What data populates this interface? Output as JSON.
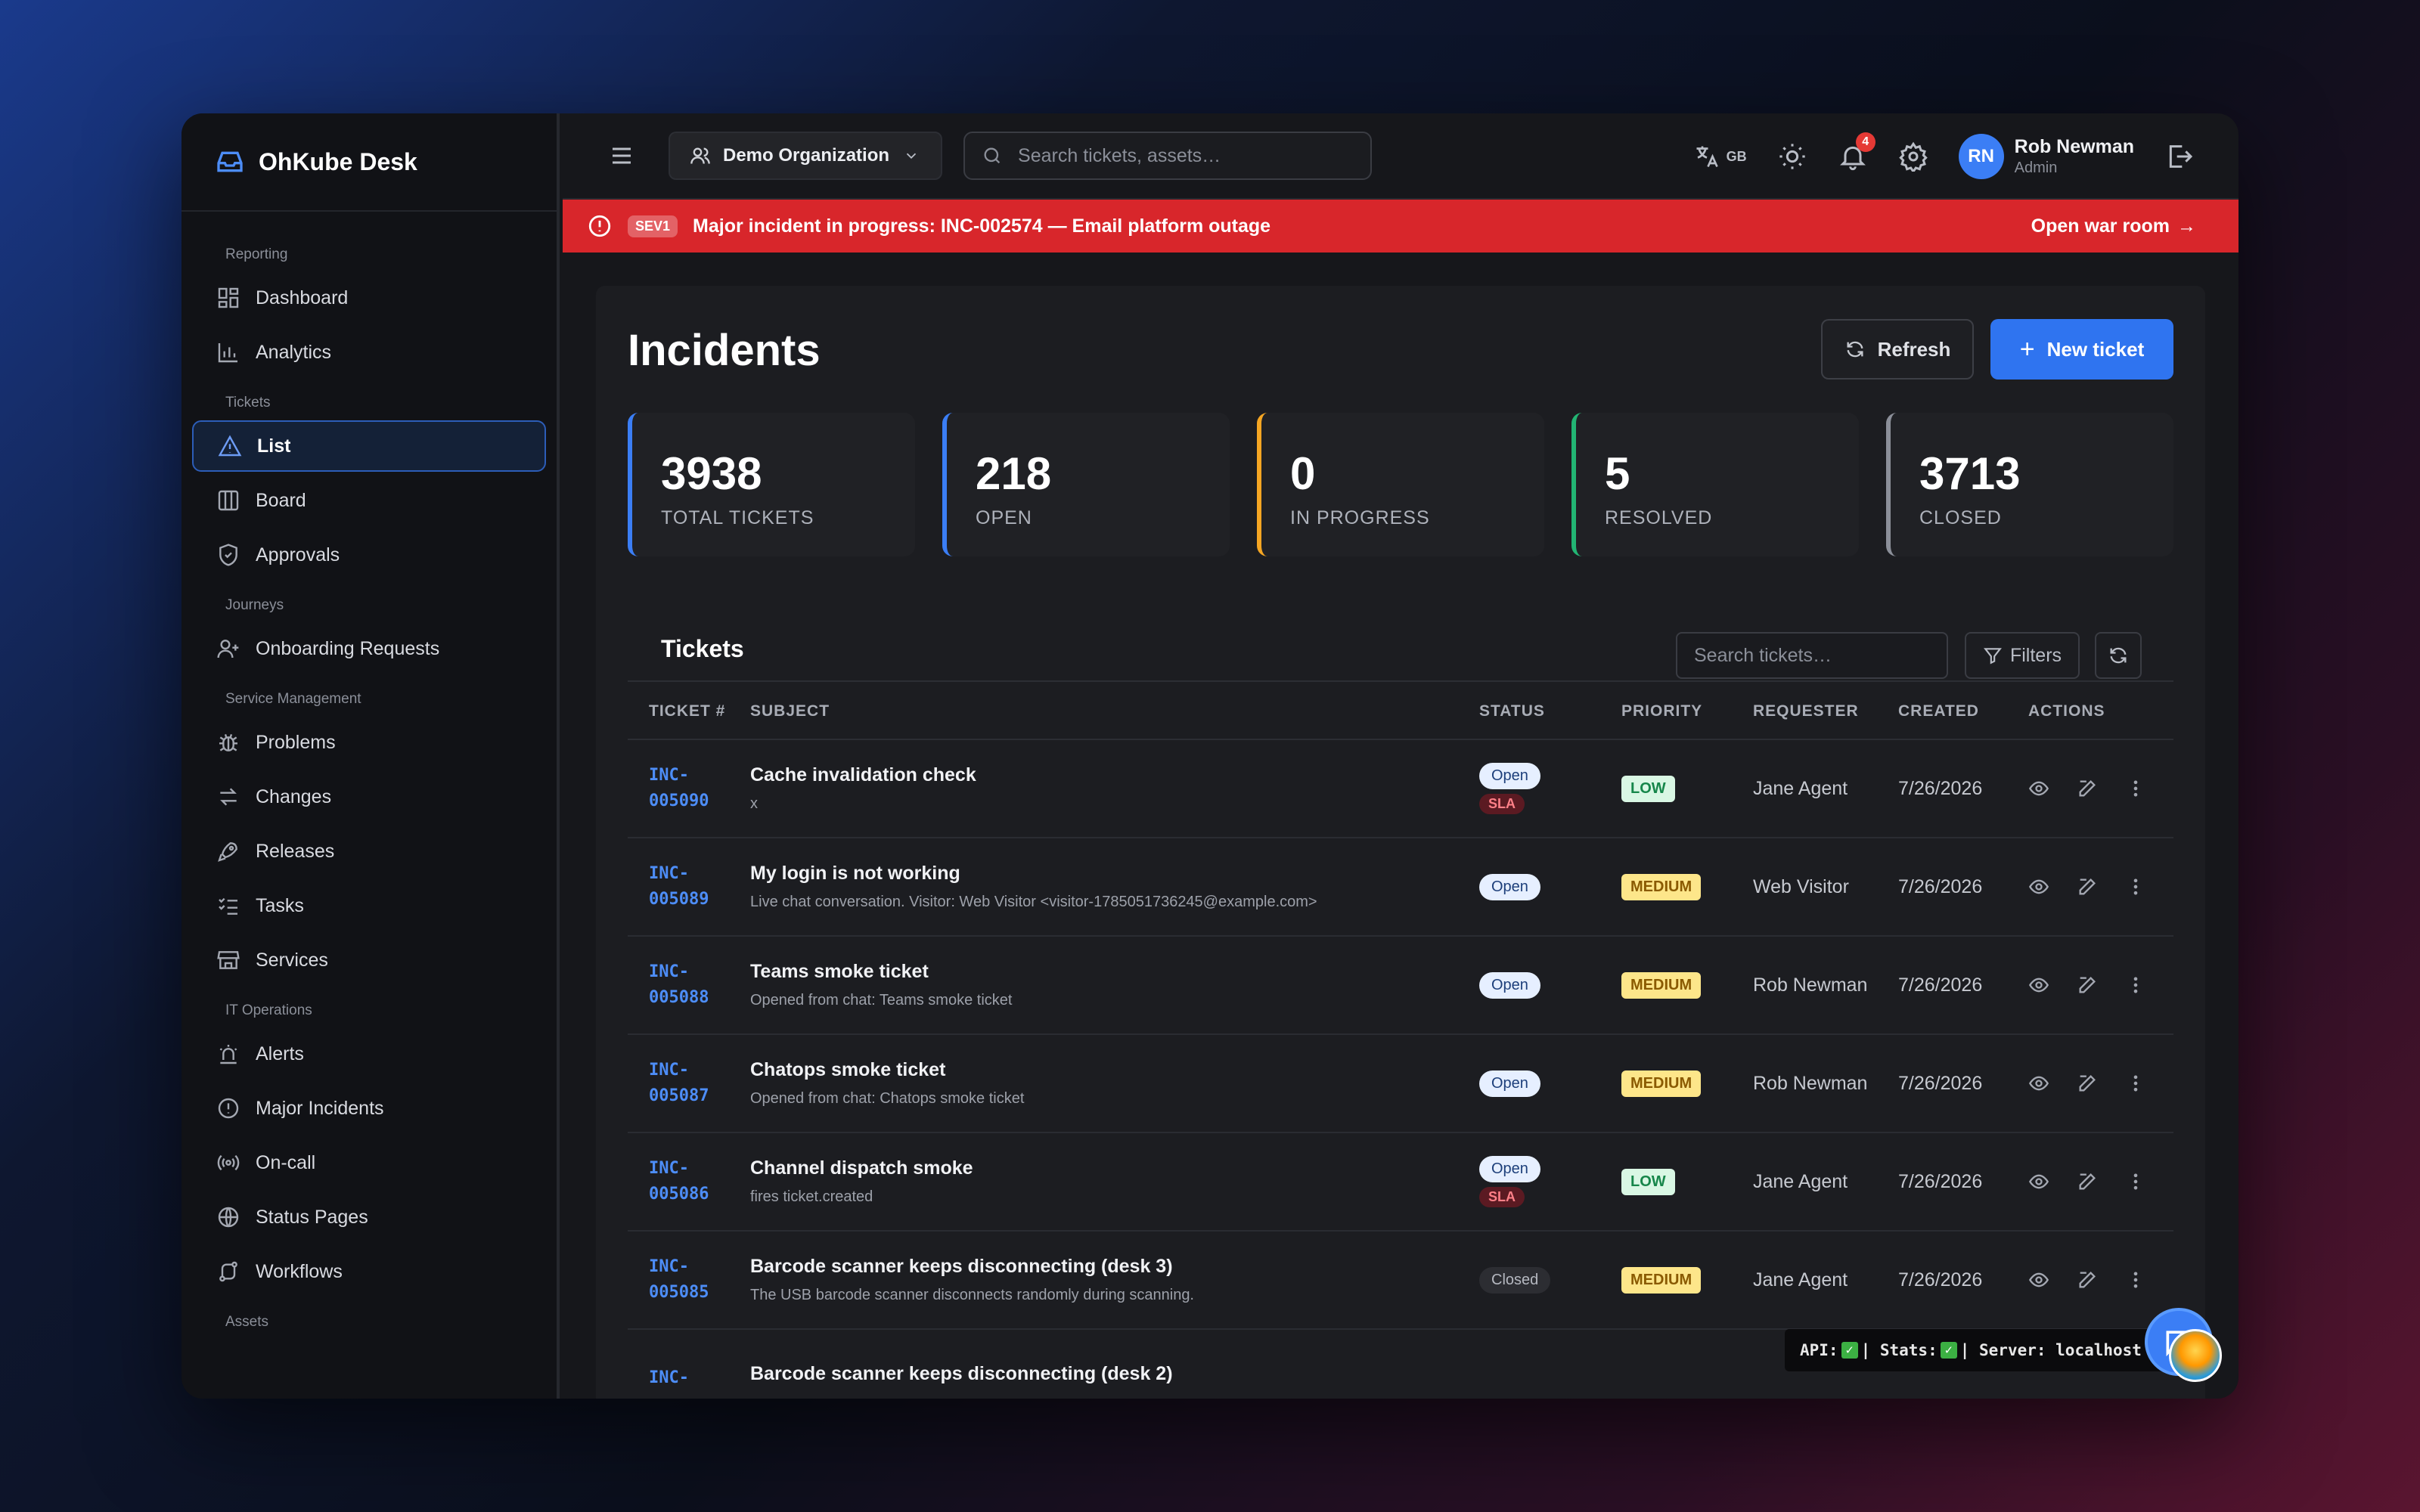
{
  "app": {
    "name": "OhKube Desk"
  },
  "sidebar": {
    "sections": [
      {
        "title": "Reporting",
        "items": [
          {
            "label": "Dashboard",
            "icon": "dashboard-icon"
          },
          {
            "label": "Analytics",
            "icon": "bar-chart-icon"
          }
        ]
      },
      {
        "title": "Tickets",
        "items": [
          {
            "label": "List",
            "icon": "warning-triangle-icon",
            "active": true
          },
          {
            "label": "Board",
            "icon": "columns-icon"
          },
          {
            "label": "Approvals",
            "icon": "shield-check-icon"
          }
        ]
      },
      {
        "title": "Journeys",
        "items": [
          {
            "label": "Onboarding Requests",
            "icon": "user-plus-icon"
          }
        ]
      },
      {
        "title": "Service Management",
        "items": [
          {
            "label": "Problems",
            "icon": "bug-icon"
          },
          {
            "label": "Changes",
            "icon": "arrows-swap-icon"
          },
          {
            "label": "Releases",
            "icon": "rocket-icon"
          },
          {
            "label": "Tasks",
            "icon": "checklist-icon"
          },
          {
            "label": "Services",
            "icon": "store-icon"
          }
        ]
      },
      {
        "title": "IT Operations",
        "items": [
          {
            "label": "Alerts",
            "icon": "siren-icon"
          },
          {
            "label": "Major Incidents",
            "icon": "alert-circle-icon"
          },
          {
            "label": "On-call",
            "icon": "radio-waves-icon"
          },
          {
            "label": "Status Pages",
            "icon": "globe-icon"
          },
          {
            "label": "Workflows",
            "icon": "workflow-icon"
          }
        ]
      },
      {
        "title": "Assets",
        "items": []
      }
    ]
  },
  "topbar": {
    "org": "Demo Organization",
    "search_placeholder": "Search tickets, assets…",
    "lang": "GB",
    "notifications": "4",
    "user": {
      "initials": "RN",
      "name": "Rob Newman",
      "role": "Admin"
    }
  },
  "alert": {
    "sev": "SEV1",
    "text": "Major incident in progress: INC-002574 — Email platform outage",
    "action": "Open war room",
    "color": "#d8262b"
  },
  "page": {
    "title": "Incidents",
    "refresh": "Refresh",
    "new_ticket": "New ticket"
  },
  "stats": [
    {
      "value": "3938",
      "label": "TOTAL TICKETS",
      "color": "#3b7ef5"
    },
    {
      "value": "218",
      "label": "OPEN",
      "color": "#3b7ef5"
    },
    {
      "value": "0",
      "label": "IN PROGRESS",
      "color": "#f5a623"
    },
    {
      "value": "5",
      "label": "RESOLVED",
      "color": "#22b573"
    },
    {
      "value": "3713",
      "label": "CLOSED",
      "color": "#8b8f99"
    }
  ],
  "tickets": {
    "title": "Tickets",
    "search_placeholder": "Search tickets…",
    "filters": "Filters",
    "columns": [
      "TICKET #",
      "SUBJECT",
      "STATUS",
      "PRIORITY",
      "REQUESTER",
      "CREATED",
      "ACTIONS"
    ],
    "rows": [
      {
        "id1": "INC-",
        "id2": "005090",
        "title": "Cache invalidation check",
        "desc": "x",
        "status": "Open",
        "sla": "SLA",
        "priority": "LOW",
        "requester": "Jane Agent",
        "created": "7/26/2026"
      },
      {
        "id1": "INC-",
        "id2": "005089",
        "title": "My login is not working",
        "desc": "Live chat conversation. Visitor: Web Visitor <visitor-1785051736245@example.com>",
        "status": "Open",
        "sla": "",
        "priority": "MEDIUM",
        "requester": "Web Visitor",
        "created": "7/26/2026"
      },
      {
        "id1": "INC-",
        "id2": "005088",
        "title": "Teams smoke ticket",
        "desc": "Opened from chat: Teams smoke ticket",
        "status": "Open",
        "sla": "",
        "priority": "MEDIUM",
        "requester": "Rob Newman",
        "created": "7/26/2026"
      },
      {
        "id1": "INC-",
        "id2": "005087",
        "title": "Chatops smoke ticket",
        "desc": "Opened from chat: Chatops smoke ticket",
        "status": "Open",
        "sla": "",
        "priority": "MEDIUM",
        "requester": "Rob Newman",
        "created": "7/26/2026"
      },
      {
        "id1": "INC-",
        "id2": "005086",
        "title": "Channel dispatch smoke",
        "desc": "fires ticket.created",
        "status": "Open",
        "sla": "SLA",
        "priority": "LOW",
        "requester": "Jane Agent",
        "created": "7/26/2026"
      },
      {
        "id1": "INC-",
        "id2": "005085",
        "title": "Barcode scanner keeps disconnecting (desk 3)",
        "desc": "The USB barcode scanner disconnects randomly during scanning.",
        "status": "Closed",
        "sla": "",
        "priority": "MEDIUM",
        "requester": "Jane Agent",
        "created": "7/26/2026"
      },
      {
        "id1": "INC-",
        "id2": "",
        "title": "Barcode scanner keeps disconnecting (desk 2)",
        "desc": "",
        "status": "",
        "sla": "",
        "priority": "",
        "requester": "",
        "created": ""
      }
    ]
  },
  "statusline": {
    "api": "API:",
    "stats": "| Stats:",
    "server": "| Server: localhost"
  }
}
